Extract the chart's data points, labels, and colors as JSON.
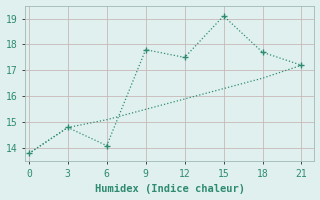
{
  "line1_x": [
    0,
    3,
    6,
    9,
    12,
    15,
    18,
    21
  ],
  "line1_y": [
    13.8,
    14.8,
    14.1,
    17.8,
    17.5,
    19.1,
    17.7,
    17.2
  ],
  "line2_x": [
    0,
    3,
    6,
    9,
    12,
    15,
    18,
    21
  ],
  "line2_y": [
    13.8,
    14.8,
    15.1,
    15.5,
    15.9,
    16.3,
    16.7,
    17.2
  ],
  "line_color": "#2e8b70",
  "background_color": "#dff0ee",
  "grid_color_major": "#c8b8b8",
  "grid_color_minor": "#c8dedd",
  "xlabel": "Humidex (Indice chaleur)",
  "xlim": [
    -0.3,
    22.0
  ],
  "ylim": [
    13.5,
    19.5
  ],
  "xticks": [
    0,
    3,
    6,
    9,
    12,
    15,
    18,
    21
  ],
  "yticks": [
    14,
    15,
    16,
    17,
    18,
    19
  ],
  "xlabel_fontsize": 7.5,
  "tick_fontsize": 7
}
